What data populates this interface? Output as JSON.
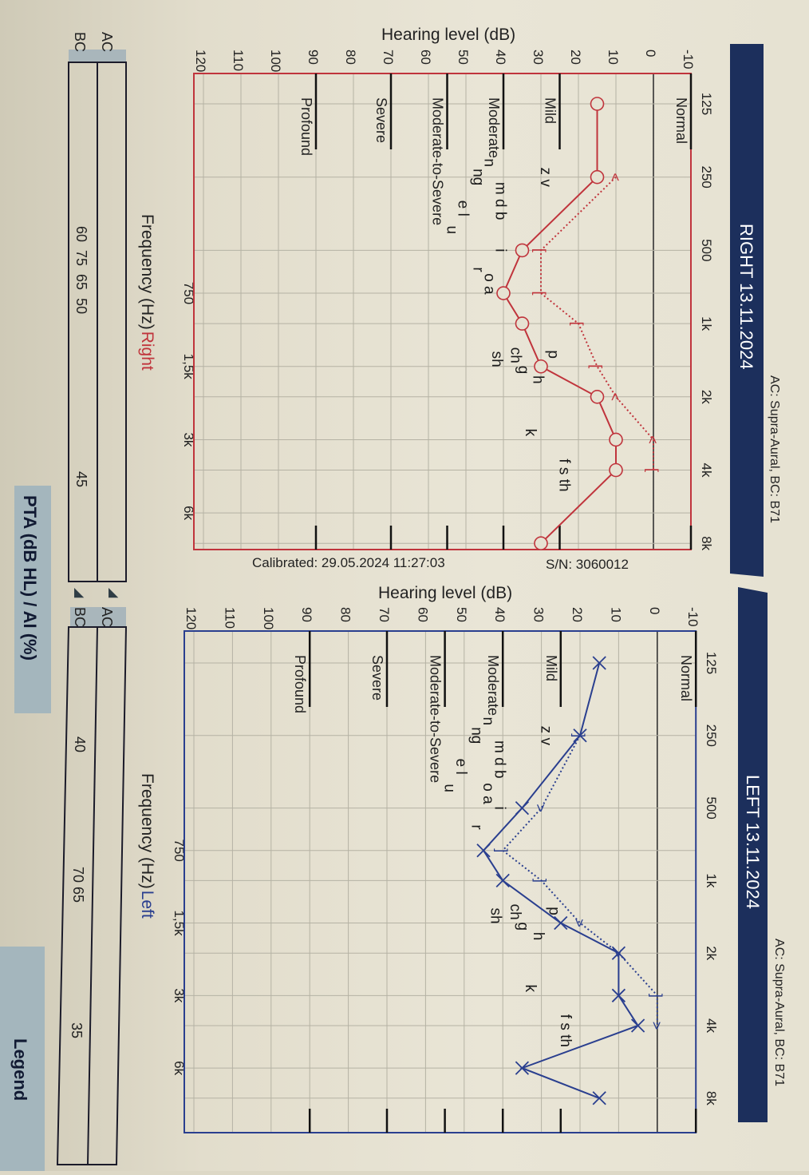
{
  "right": {
    "header": "RIGHT 13.11.2024",
    "transducer": "AC: Supra-Aural, BC: B71",
    "ylabel": "Hearing level (dB)",
    "xlabel": "Frequency (Hz)",
    "ear_label": "Right",
    "pta": {
      "row_labels": [
        "AC",
        "BC"
      ],
      "values_text": [
        "60  75  65  50",
        "45"
      ]
    }
  },
  "left": {
    "header": "LEFT 13.11.2024",
    "transducer": "AC: Supra-Aural, BC: B71",
    "ylabel": "Hearing level (dB)",
    "xlabel": "Frequency (Hz)",
    "ear_label": "Left",
    "pta": {
      "row_labels": [
        "AC",
        "BC"
      ],
      "values_text": [
        "40",
        "70 65",
        "35"
      ]
    }
  },
  "calibrated": "Calibrated: 29.05.2024 11:27:03",
  "serial": "S/N: 3060012",
  "pta_title": "PTA (dB HL) / AI (%)",
  "legend_button": "Legend",
  "colors": {
    "right": "#c0343c",
    "left": "#2a3f8f",
    "header_bg": "#1c2f5c",
    "grid": "#b9b6a8"
  },
  "chart_data": [
    {
      "type": "line",
      "title": "RIGHT 13.11.2024",
      "xlabel": "Frequency (Hz) Right",
      "ylabel": "Hearing level (dB)",
      "x_scale": "log2",
      "x_ticks_top": [
        "125",
        "250",
        "500",
        "1k",
        "2k",
        "4k",
        "8k"
      ],
      "x_ticks_bottom": [
        "750",
        "1,5k",
        "3k",
        "6k"
      ],
      "y_ticks": [
        -10,
        0,
        10,
        20,
        30,
        40,
        50,
        60,
        70,
        80,
        90,
        100,
        110,
        120
      ],
      "ylim": [
        -10,
        120
      ],
      "y_inverted": true,
      "grid": true,
      "categories": [
        {
          "label": "Normal",
          "db": -10
        },
        {
          "label": "Mild",
          "db": 25
        },
        {
          "label": "Moderate",
          "db": 40
        },
        {
          "label": "Moderate-to-Severe",
          "db": 55
        },
        {
          "label": "Severe",
          "db": 70
        },
        {
          "label": "Profound",
          "db": 90
        }
      ],
      "series": [
        {
          "kind": "AC",
          "symbol": "O",
          "x": [
            125,
            250,
            500,
            750,
            1000,
            1500,
            2000,
            3000,
            4000,
            8000
          ],
          "y": [
            15,
            15,
            35,
            40,
            35,
            30,
            15,
            10,
            10,
            30
          ]
        },
        {
          "kind": "BC",
          "symbols": [
            "<",
            "[",
            "[",
            "[",
            "[",
            "<",
            "<",
            "["
          ],
          "x": [
            250,
            500,
            750,
            1000,
            1500,
            2000,
            3000,
            4000
          ],
          "y": [
            10,
            30,
            30,
            20,
            15,
            10,
            0,
            0
          ]
        }
      ],
      "speech_sounds": [
        {
          "t": "z v",
          "f": 250,
          "db": 30
        },
        {
          "t": "m d b",
          "f": 250,
          "db": 42
        },
        {
          "t": "i",
          "f": 500,
          "db": 42
        },
        {
          "t": "n",
          "f": 250,
          "db": 45
        },
        {
          "t": "ng",
          "f": 250,
          "db": 48
        },
        {
          "t": "e l",
          "f": 300,
          "db": 52
        },
        {
          "t": "u",
          "f": 300,
          "db": 55
        },
        {
          "t": "o a",
          "f": 560,
          "db": 45
        },
        {
          "t": "r",
          "f": 600,
          "db": 48
        },
        {
          "t": "p",
          "f": 1400,
          "db": 28
        },
        {
          "t": "h",
          "f": 1450,
          "db": 32
        },
        {
          "t": "ch",
          "f": 1350,
          "db": 38
        },
        {
          "t": "sh",
          "f": 1400,
          "db": 43
        },
        {
          "t": "g",
          "f": 1550,
          "db": 36
        },
        {
          "t": "k",
          "f": 2800,
          "db": 34
        },
        {
          "t": "f s th",
          "f": 4200,
          "db": 25
        }
      ]
    },
    {
      "type": "line",
      "title": "LEFT 13.11.2024",
      "xlabel": "Frequency (Hz) Left",
      "ylabel": "Hearing level (dB)",
      "x_scale": "log2",
      "x_ticks_top": [
        "125",
        "250",
        "500",
        "1k",
        "2k",
        "4k",
        "8k"
      ],
      "x_ticks_bottom": [
        "750",
        "1,5k",
        "3k",
        "6k"
      ],
      "y_ticks": [
        -10,
        0,
        10,
        20,
        30,
        40,
        50,
        60,
        70,
        80,
        90,
        100,
        110,
        120
      ],
      "ylim": [
        -10,
        120
      ],
      "y_inverted": true,
      "grid": true,
      "categories": [
        {
          "label": "Normal",
          "db": -10
        },
        {
          "label": "Mild",
          "db": 25
        },
        {
          "label": "Moderate",
          "db": 40
        },
        {
          "label": "Moderate-to-Severe",
          "db": 55
        },
        {
          "label": "Severe",
          "db": 70
        },
        {
          "label": "Profound",
          "db": 90
        }
      ],
      "series": [
        {
          "kind": "AC",
          "symbol": "X",
          "x": [
            125,
            250,
            500,
            750,
            1000,
            1500,
            2000,
            3000,
            4000,
            6000,
            8000
          ],
          "y": [
            15,
            20,
            35,
            45,
            40,
            25,
            10,
            10,
            5,
            35,
            15
          ]
        },
        {
          "kind": "BC",
          "symbols": [
            "]",
            ">",
            "]",
            "]",
            ">",
            ">",
            "]",
            ">"
          ],
          "x": [
            250,
            500,
            750,
            1000,
            1500,
            2000,
            3000,
            4000
          ],
          "y": [
            20,
            30,
            40,
            30,
            20,
            10,
            0,
            0
          ]
        }
      ],
      "speech_sounds": [
        {
          "t": "z v",
          "f": 250,
          "db": 30
        },
        {
          "t": "m d b",
          "f": 250,
          "db": 42
        },
        {
          "t": "i",
          "f": 500,
          "db": 42
        },
        {
          "t": "n",
          "f": 250,
          "db": 45
        },
        {
          "t": "ng",
          "f": 250,
          "db": 48
        },
        {
          "t": "e l",
          "f": 300,
          "db": 52
        },
        {
          "t": "u",
          "f": 300,
          "db": 55
        },
        {
          "t": "o a",
          "f": 560,
          "db": 45
        },
        {
          "t": "r",
          "f": 600,
          "db": 48
        },
        {
          "t": "p",
          "f": 1400,
          "db": 28
        },
        {
          "t": "h",
          "f": 1450,
          "db": 32
        },
        {
          "t": "ch",
          "f": 1350,
          "db": 38
        },
        {
          "t": "sh",
          "f": 1400,
          "db": 43
        },
        {
          "t": "g",
          "f": 1550,
          "db": 36
        },
        {
          "t": "k",
          "f": 2800,
          "db": 34
        },
        {
          "t": "f s th",
          "f": 4200,
          "db": 25
        }
      ]
    }
  ]
}
